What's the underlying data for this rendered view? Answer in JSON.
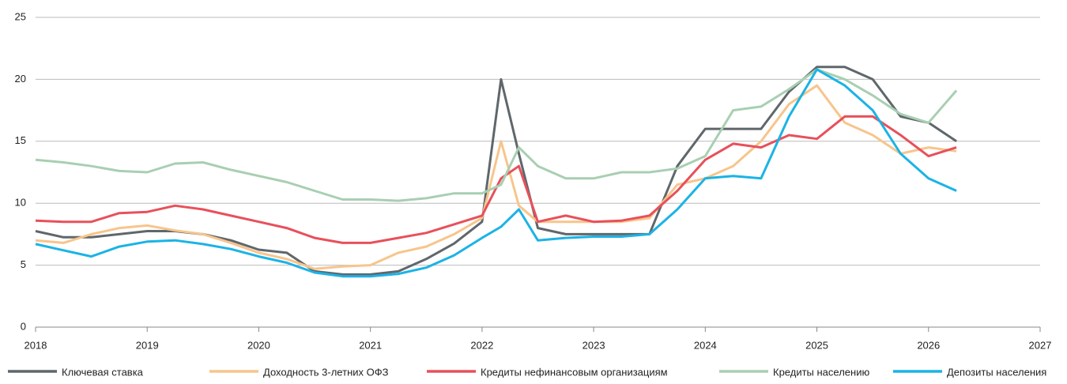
{
  "chart_data": {
    "type": "line",
    "x": [
      2018,
      2018.25,
      2018.5,
      2018.75,
      2019,
      2019.25,
      2019.5,
      2019.75,
      2020,
      2020.25,
      2020.5,
      2020.75,
      2021,
      2021.25,
      2021.5,
      2021.75,
      2022,
      2022.17,
      2022.33,
      2022.5,
      2022.75,
      2023,
      2023.25,
      2023.5,
      2023.75,
      2024,
      2024.25,
      2024.5,
      2024.75,
      2025,
      2025.25,
      2025.5,
      2025.75,
      2026,
      2026.25
    ],
    "series": [
      {
        "name": "Ключевая ставка",
        "color": "#5f676b",
        "values": [
          7.75,
          7.25,
          7.25,
          7.5,
          7.75,
          7.75,
          7.5,
          7,
          6.25,
          6,
          4.5,
          4.25,
          4.25,
          4.5,
          5.5,
          6.75,
          8.5,
          20,
          14,
          8,
          7.5,
          7.5,
          7.5,
          7.5,
          13,
          16,
          16,
          16,
          19,
          21,
          21,
          20,
          17,
          16.5,
          15
        ]
      },
      {
        "name": "Доходность 3-летних ОФЗ",
        "color": "#f7c58c",
        "values": [
          7,
          6.8,
          7.5,
          8,
          8.2,
          7.8,
          7.5,
          6.8,
          6,
          5.5,
          4.7,
          4.9,
          5,
          6,
          6.5,
          7.5,
          8.8,
          15,
          9.8,
          8.5,
          8.5,
          8.5,
          8.5,
          8.8,
          11.5,
          12,
          13,
          15,
          18,
          19.5,
          16.5,
          15.5,
          14,
          14.5,
          14.2
        ]
      },
      {
        "name": "Кредиты нефинансовым организациям",
        "color": "#e8505b",
        "values": [
          8.6,
          8.5,
          8.5,
          9.2,
          9.3,
          9.8,
          9.5,
          9,
          8.5,
          8,
          7.2,
          6.8,
          6.8,
          7.2,
          7.6,
          8.3,
          9,
          12,
          13,
          8.5,
          9,
          8.5,
          8.6,
          9,
          11,
          13.5,
          14.8,
          14.5,
          15.5,
          15.2,
          17,
          17,
          15.5,
          13.8,
          14.5
        ]
      },
      {
        "name": "Кредиты населению",
        "color": "#a8cfb2",
        "values": [
          13.5,
          13.3,
          13,
          12.6,
          12.5,
          13.2,
          13.3,
          12.7,
          12.2,
          11.7,
          11,
          10.3,
          10.3,
          10.2,
          10.4,
          10.8,
          10.8,
          11.5,
          14.5,
          13,
          12,
          12,
          12.5,
          12.5,
          12.8,
          13.8,
          17.5,
          17.8,
          19.2,
          20.8,
          20,
          18.7,
          17.2,
          16.5,
          19.1
        ]
      },
      {
        "name": "Депозиты населения",
        "color": "#1bb3e6",
        "values": [
          6.7,
          6.2,
          5.7,
          6.5,
          6.9,
          7,
          6.7,
          6.3,
          5.7,
          5.2,
          4.4,
          4.1,
          4.1,
          4.3,
          4.8,
          5.8,
          7.2,
          8.1,
          9.5,
          7,
          7.2,
          7.3,
          7.3,
          7.5,
          9.5,
          12,
          12.2,
          12,
          17,
          20.8,
          19.5,
          17.5,
          14,
          12,
          11
        ]
      }
    ],
    "xlim": [
      2018,
      2027
    ],
    "xticks": [
      2018,
      2019,
      2020,
      2021,
      2022,
      2023,
      2024,
      2025,
      2026,
      2027
    ],
    "ylim": [
      0,
      25
    ],
    "yticks": [
      0,
      5,
      10,
      15,
      20,
      25
    ],
    "grid": true,
    "legend": "bottom"
  }
}
